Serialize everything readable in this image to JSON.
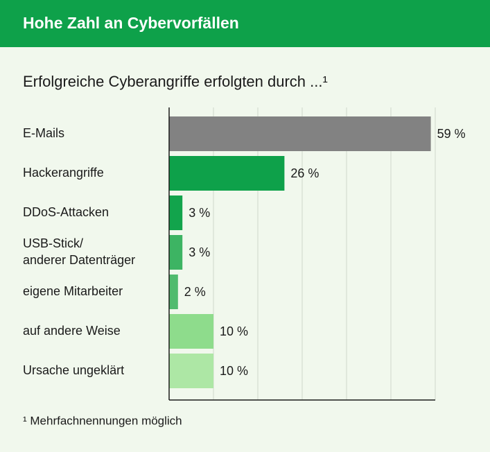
{
  "chart_data": {
    "type": "bar",
    "orientation": "horizontal",
    "title": "Hohe Zahl an Cybervorfällen",
    "subtitle": "Erfolgreiche Cyberangriffe erfolgten durch ...¹",
    "footnote": "¹ Mehrfachnennungen möglich",
    "categories": [
      "E-Mails",
      "Hackerangriffe",
      "DDoS-Attacken",
      "USB-Stick/\nanderer Datenträger",
      "eigene Mitarbeiter",
      "auf andere Weise",
      "Ursache ungeklärt"
    ],
    "values": [
      59,
      26,
      3,
      3,
      2,
      10,
      10
    ],
    "value_labels": [
      "59 %",
      "26 %",
      "3 %",
      "3 %",
      "2 %",
      "10 %",
      "10 %"
    ],
    "colors": [
      "#828282",
      "#0ea14a",
      "#12a44c",
      "#3db463",
      "#50bb6e",
      "#8edc8c",
      "#ade7a5"
    ],
    "xlim": [
      0,
      60
    ],
    "xticks": [
      0,
      10,
      20,
      30,
      40,
      50,
      60
    ],
    "grid": true
  }
}
